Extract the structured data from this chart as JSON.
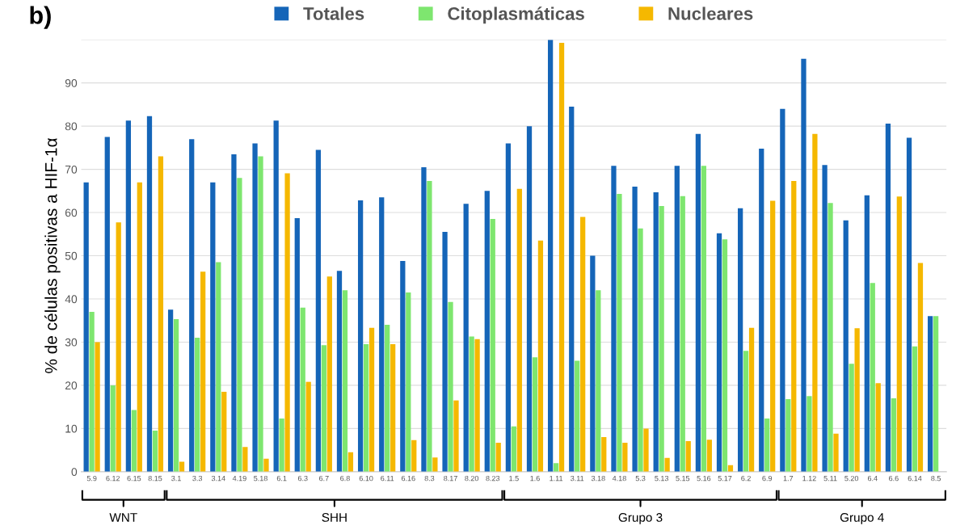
{
  "chart_data": {
    "type": "bar",
    "title": "b)",
    "ylabel": "% de células positivas a HIF-1α",
    "categories": [
      "5.9",
      "6.12",
      "6.15",
      "8.15",
      "3.1",
      "3.3",
      "3.14",
      "4.19",
      "5.18",
      "6.1",
      "6.3",
      "6.7",
      "6.8",
      "6.10",
      "6.11",
      "6.16",
      "8.3",
      "8.17",
      "8.20",
      "8.23",
      "1.5",
      "1.6",
      "1.11",
      "3.11",
      "3.18",
      "4.18",
      "5.3",
      "5.13",
      "5.15",
      "5.16",
      "5.17",
      "6.2",
      "6.9",
      "1.7",
      "1.12",
      "5.11",
      "5.20",
      "6.4",
      "6.6",
      "6.14",
      "8.5"
    ],
    "series": [
      {
        "name": "Totales",
        "color": "#1565b8",
        "values": [
          67,
          77.5,
          81.3,
          82.3,
          37.5,
          77,
          67,
          73.5,
          76,
          81.3,
          58.7,
          74.5,
          46.5,
          62.8,
          63.5,
          48.8,
          70.5,
          55.5,
          62,
          65,
          76,
          80,
          100,
          84.5,
          50,
          70.8,
          66,
          64.7,
          70.8,
          78.2,
          55.2,
          61,
          74.8,
          84,
          95.6,
          71,
          58.2,
          64,
          80.6,
          77.3,
          36
        ]
      },
      {
        "name": "Citoplasmáticas",
        "color": "#7ee66f",
        "values": [
          37,
          20,
          14.3,
          9.5,
          35.3,
          31,
          48.5,
          68,
          73,
          12.3,
          38,
          29.3,
          42,
          29.5,
          34,
          41.5,
          67.3,
          39.3,
          31.3,
          58.5,
          10.5,
          26.5,
          2,
          25.7,
          42,
          64.3,
          56.3,
          61.5,
          63.8,
          70.8,
          53.8,
          28,
          12.3,
          16.8,
          17.5,
          62.2,
          25,
          43.7,
          17,
          29,
          36
        ]
      },
      {
        "name": "Nucleares",
        "color": "#f5b800",
        "values": [
          30,
          57.7,
          67,
          73,
          2.3,
          46.3,
          18.5,
          5.7,
          3,
          69.1,
          20.8,
          45.2,
          4.5,
          33.3,
          29.5,
          7.3,
          3.3,
          16.5,
          30.7,
          6.7,
          65.5,
          53.5,
          99.3,
          59,
          8,
          6.7,
          10,
          3.2,
          7.1,
          7.4,
          1.5,
          33.3,
          62.7,
          67.3,
          78.2,
          8.8,
          33.2,
          20.5,
          63.7,
          48.3,
          0
        ]
      }
    ],
    "ylim": [
      0,
      100
    ],
    "yticks": [
      0,
      10,
      20,
      30,
      40,
      50,
      60,
      70,
      80,
      90,
      {
        "value": 100,
        "label": null
      }
    ],
    "grid": "y",
    "legend": "top",
    "annotations": [
      "WNT",
      "SHH",
      "Grupo 3",
      "Grupo 4"
    ]
  }
}
